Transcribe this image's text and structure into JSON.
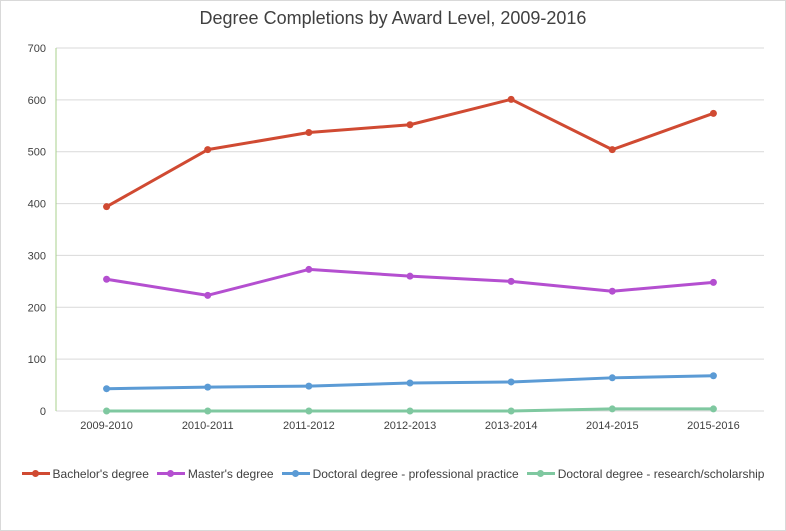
{
  "chart_data": {
    "type": "line",
    "title": "Degree Completions by Award Level, 2009-2016",
    "xlabel": "",
    "ylabel": "",
    "categories": [
      "2009-2010",
      "2010-2011",
      "2011-2012",
      "2012-2013",
      "2013-2014",
      "2014-2015",
      "2015-2016"
    ],
    "ylim": [
      0,
      700
    ],
    "yticks": [
      "0",
      "100",
      "200",
      "300",
      "400",
      "500",
      "600",
      "700"
    ],
    "grid": true,
    "legend_position": "bottom",
    "series": [
      {
        "name": "Bachelor's degree",
        "color": "#d04a32",
        "values": [
          394,
          504,
          537,
          552,
          601,
          504,
          574
        ]
      },
      {
        "name": "Master's degree",
        "color": "#b44fd0",
        "values": [
          254,
          223,
          273,
          260,
          250,
          231,
          248
        ]
      },
      {
        "name": "Doctoral degree - professional practice",
        "color": "#5b9bd5",
        "values": [
          43,
          46,
          48,
          54,
          56,
          64,
          68
        ]
      },
      {
        "name": "Doctoral degree - research/scholarship",
        "color": "#7fc8a0",
        "values": [
          0,
          0,
          0,
          0,
          0,
          4,
          4
        ]
      }
    ]
  }
}
